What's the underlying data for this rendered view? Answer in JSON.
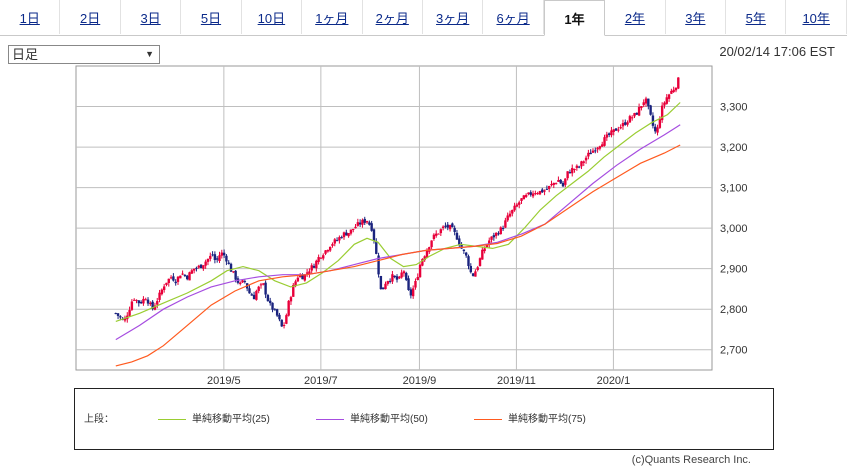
{
  "tabs": [
    {
      "label": "1日",
      "active": false
    },
    {
      "label": "2日",
      "active": false
    },
    {
      "label": "3日",
      "active": false
    },
    {
      "label": "5日",
      "active": false
    },
    {
      "label": "10日",
      "active": false
    },
    {
      "label": "1ヶ月",
      "active": false
    },
    {
      "label": "2ヶ月",
      "active": false
    },
    {
      "label": "3ヶ月",
      "active": false
    },
    {
      "label": "6ヶ月",
      "active": false
    },
    {
      "label": "1年",
      "active": true
    },
    {
      "label": "2年",
      "active": false
    },
    {
      "label": "3年",
      "active": false
    },
    {
      "label": "5年",
      "active": false
    },
    {
      "label": "10年",
      "active": false
    }
  ],
  "period_select": {
    "value": "日足"
  },
  "timestamp": "20/02/14 17:06 EST",
  "legend": {
    "label": "上段：",
    "items": [
      {
        "name": "単純移動平均(25)",
        "color": "#9acd32"
      },
      {
        "name": "単純移動平均(50)",
        "color": "#a64de0"
      },
      {
        "name": "単純移動平均(75)",
        "color": "#ff5a1f"
      }
    ]
  },
  "copyright": "(c)Quants Research Inc.",
  "colors": {
    "up": "#e8003a",
    "down": "#1a237e",
    "grid": "#bfbfbf"
  },
  "chart_data": {
    "type": "candlestick",
    "yticks": [
      2700,
      2800,
      2900,
      3000,
      3100,
      3200,
      3300
    ],
    "ytick_labels": [
      "2,700",
      "2,800",
      "2,900",
      "3,000",
      "3,100",
      "3,200",
      "3,300"
    ],
    "ylim": [
      2650,
      3400
    ],
    "xticks": [
      {
        "label": "2019/5",
        "day": 93
      },
      {
        "label": "2019/7",
        "day": 154
      },
      {
        "label": "2019/9",
        "day": 216
      },
      {
        "label": "2019/11",
        "day": 277
      },
      {
        "label": "2020/1",
        "day": 338
      }
    ],
    "xlim": [
      0,
      400
    ],
    "close_path": [
      [
        25,
        2790
      ],
      [
        30,
        2770
      ],
      [
        33,
        2795
      ],
      [
        36,
        2830
      ],
      [
        40,
        2815
      ],
      [
        44,
        2830
      ],
      [
        48,
        2800
      ],
      [
        52,
        2830
      ],
      [
        56,
        2865
      ],
      [
        60,
        2880
      ],
      [
        63,
        2870
      ],
      [
        66,
        2890
      ],
      [
        70,
        2880
      ],
      [
        74,
        2900
      ],
      [
        78,
        2905
      ],
      [
        82,
        2920
      ],
      [
        86,
        2935
      ],
      [
        88,
        2915
      ],
      [
        91,
        2940
      ],
      [
        94,
        2930
      ],
      [
        97,
        2900
      ],
      [
        100,
        2880
      ],
      [
        103,
        2860
      ],
      [
        106,
        2870
      ],
      [
        109,
        2840
      ],
      [
        112,
        2830
      ],
      [
        114,
        2850
      ],
      [
        118,
        2860
      ],
      [
        120,
        2830
      ],
      [
        122,
        2810
      ],
      [
        124,
        2800
      ],
      [
        127,
        2780
      ],
      [
        130,
        2750
      ],
      [
        132,
        2780
      ],
      [
        134,
        2820
      ],
      [
        137,
        2860
      ],
      [
        140,
        2885
      ],
      [
        143,
        2880
      ],
      [
        146,
        2895
      ],
      [
        150,
        2910
      ],
      [
        153,
        2930
      ],
      [
        157,
        2945
      ],
      [
        160,
        2960
      ],
      [
        164,
        2970
      ],
      [
        168,
        2985
      ],
      [
        172,
        2990
      ],
      [
        176,
        3005
      ],
      [
        180,
        3015
      ],
      [
        183,
        3020
      ],
      [
        186,
        3000
      ],
      [
        188,
        2960
      ],
      [
        190,
        2900
      ],
      [
        192,
        2840
      ],
      [
        195,
        2870
      ],
      [
        199,
        2880
      ],
      [
        203,
        2870
      ],
      [
        206,
        2900
      ],
      [
        208,
        2860
      ],
      [
        210,
        2830
      ],
      [
        214,
        2870
      ],
      [
        217,
        2920
      ],
      [
        220,
        2940
      ],
      [
        224,
        2975
      ],
      [
        228,
        2990
      ],
      [
        232,
        3005
      ],
      [
        236,
        3000
      ],
      [
        240,
        2975
      ],
      [
        243,
        2945
      ],
      [
        245,
        2935
      ],
      [
        247,
        2910
      ],
      [
        249,
        2880
      ],
      [
        252,
        2900
      ],
      [
        256,
        2945
      ],
      [
        260,
        2970
      ],
      [
        264,
        2985
      ],
      [
        268,
        3000
      ],
      [
        272,
        3030
      ],
      [
        276,
        3050
      ],
      [
        280,
        3070
      ],
      [
        284,
        3080
      ],
      [
        288,
        3090
      ],
      [
        292,
        3090
      ],
      [
        296,
        3095
      ],
      [
        300,
        3110
      ],
      [
        304,
        3120
      ],
      [
        306,
        3100
      ],
      [
        309,
        3135
      ],
      [
        312,
        3145
      ],
      [
        316,
        3150
      ],
      [
        319,
        3165
      ],
      [
        322,
        3180
      ],
      [
        326,
        3195
      ],
      [
        330,
        3210
      ],
      [
        334,
        3225
      ],
      [
        337,
        3235
      ],
      [
        340,
        3245
      ],
      [
        344,
        3255
      ],
      [
        348,
        3270
      ],
      [
        352,
        3280
      ],
      [
        355,
        3300
      ],
      [
        358,
        3320
      ],
      [
        361,
        3280
      ],
      [
        363,
        3250
      ],
      [
        365,
        3230
      ],
      [
        368,
        3290
      ],
      [
        371,
        3320
      ],
      [
        374,
        3335
      ],
      [
        377,
        3350
      ],
      [
        380,
        3375
      ]
    ],
    "series": [
      {
        "name": "単純移動平均(25)",
        "color": "#9acd32",
        "points": [
          [
            25,
            2770
          ],
          [
            40,
            2790
          ],
          [
            55,
            2815
          ],
          [
            70,
            2840
          ],
          [
            85,
            2870
          ],
          [
            95,
            2895
          ],
          [
            105,
            2905
          ],
          [
            115,
            2895
          ],
          [
            125,
            2870
          ],
          [
            135,
            2855
          ],
          [
            145,
            2865
          ],
          [
            155,
            2890
          ],
          [
            165,
            2920
          ],
          [
            175,
            2960
          ],
          [
            183,
            2975
          ],
          [
            190,
            2965
          ],
          [
            198,
            2925
          ],
          [
            206,
            2905
          ],
          [
            214,
            2910
          ],
          [
            222,
            2930
          ],
          [
            232,
            2950
          ],
          [
            242,
            2960
          ],
          [
            252,
            2955
          ],
          [
            262,
            2950
          ],
          [
            272,
            2960
          ],
          [
            282,
            3000
          ],
          [
            292,
            3045
          ],
          [
            302,
            3080
          ],
          [
            312,
            3110
          ],
          [
            322,
            3140
          ],
          [
            332,
            3175
          ],
          [
            342,
            3205
          ],
          [
            352,
            3235
          ],
          [
            362,
            3260
          ],
          [
            372,
            3280
          ],
          [
            380,
            3310
          ]
        ]
      },
      {
        "name": "単純移動平均(50)",
        "color": "#a64de0",
        "points": [
          [
            25,
            2725
          ],
          [
            40,
            2760
          ],
          [
            55,
            2800
          ],
          [
            70,
            2830
          ],
          [
            85,
            2855
          ],
          [
            100,
            2870
          ],
          [
            115,
            2880
          ],
          [
            130,
            2885
          ],
          [
            145,
            2885
          ],
          [
            160,
            2895
          ],
          [
            175,
            2910
          ],
          [
            190,
            2925
          ],
          [
            205,
            2935
          ],
          [
            220,
            2945
          ],
          [
            235,
            2950
          ],
          [
            250,
            2955
          ],
          [
            265,
            2965
          ],
          [
            280,
            2985
          ],
          [
            295,
            3010
          ],
          [
            310,
            3060
          ],
          [
            325,
            3110
          ],
          [
            340,
            3155
          ],
          [
            355,
            3195
          ],
          [
            370,
            3230
          ],
          [
            380,
            3255
          ]
        ]
      },
      {
        "name": "単純移動平均(75)",
        "color": "#ff5a1f",
        "points": [
          [
            25,
            2660
          ],
          [
            35,
            2670
          ],
          [
            45,
            2685
          ],
          [
            55,
            2710
          ],
          [
            70,
            2760
          ],
          [
            85,
            2810
          ],
          [
            100,
            2845
          ],
          [
            115,
            2870
          ],
          [
            130,
            2880
          ],
          [
            145,
            2885
          ],
          [
            160,
            2895
          ],
          [
            175,
            2905
          ],
          [
            190,
            2920
          ],
          [
            205,
            2935
          ],
          [
            220,
            2945
          ],
          [
            235,
            2950
          ],
          [
            250,
            2955
          ],
          [
            265,
            2962
          ],
          [
            280,
            2980
          ],
          [
            295,
            3010
          ],
          [
            310,
            3050
          ],
          [
            325,
            3090
          ],
          [
            340,
            3125
          ],
          [
            355,
            3160
          ],
          [
            370,
            3185
          ],
          [
            380,
            3205
          ]
        ]
      }
    ]
  }
}
